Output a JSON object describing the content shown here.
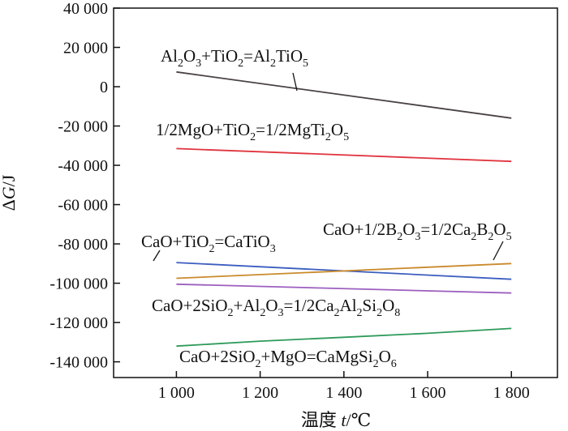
{
  "chart_data": {
    "type": "line",
    "xlabel": "温度 t/℃",
    "xlabel_prefix": "温度 ",
    "xlabel_var": "t",
    "xlabel_unit": "/℃",
    "ylabel": "ΔG/J",
    "ylabel_prefix": "Δ",
    "ylabel_var": "G",
    "ylabel_unit": "/J",
    "xlim": [
      850,
      1910
    ],
    "ylim": [
      -148000,
      40000
    ],
    "x_ticks": [
      1000,
      1200,
      1400,
      1600,
      1800
    ],
    "x_tick_labels": [
      "1 000",
      "1 200",
      "1 400",
      "1 600",
      "1 800"
    ],
    "y_ticks": [
      40000,
      20000,
      0,
      -20000,
      -40000,
      -60000,
      -80000,
      -100000,
      -120000,
      -140000
    ],
    "y_tick_labels": [
      "40 000",
      "20 000",
      "0",
      "-20 000",
      "-40 000",
      "-60 000",
      "-80 000",
      "-100 000",
      "-120 000",
      "-140 000"
    ],
    "grid": false,
    "series": [
      {
        "name": "Al2O3+TiO2=Al2TiO5",
        "color": "#4a4242",
        "x": [
          1000,
          1800
        ],
        "y": [
          7500,
          -16000
        ],
        "label_parts": [
          [
            "Al",
            ""
          ],
          [
            "2",
            "sub"
          ],
          [
            "O",
            ""
          ],
          [
            "3",
            "sub"
          ],
          [
            "+TiO",
            ""
          ],
          [
            "2",
            "sub"
          ],
          [
            "=Al",
            ""
          ],
          [
            "2",
            "sub"
          ],
          [
            "TiO",
            ""
          ],
          [
            "5",
            "sub"
          ]
        ]
      },
      {
        "name": "1/2MgO+TiO2=1/2MgTi2O5",
        "color": "#e0343f",
        "x": [
          1000,
          1800
        ],
        "y": [
          -31500,
          -38000
        ],
        "label_parts": [
          [
            "1/2MgO+TiO",
            ""
          ],
          [
            "2",
            "sub"
          ],
          [
            "=1/2MgTi",
            ""
          ],
          [
            "2",
            "sub"
          ],
          [
            "O",
            ""
          ],
          [
            "5",
            "sub"
          ]
        ]
      },
      {
        "name": "CaO+TiO2=CaTiO3",
        "color": "#3b5dbf",
        "x": [
          1000,
          1800
        ],
        "y": [
          -89500,
          -98000
        ],
        "label_parts": [
          [
            "CaO+TiO",
            ""
          ],
          [
            "2",
            "sub"
          ],
          [
            "=CaTiO",
            ""
          ],
          [
            "3",
            "sub"
          ]
        ]
      },
      {
        "name": "CaO+1/2B2O3=1/2Ca2B2O5",
        "color": "#c98a2c",
        "x": [
          1000,
          1800
        ],
        "y": [
          -97500,
          -90000
        ],
        "label_parts": [
          [
            "CaO+1/2B",
            ""
          ],
          [
            "2",
            "sub"
          ],
          [
            "O",
            ""
          ],
          [
            "3",
            "sub"
          ],
          [
            "=1/2Ca",
            ""
          ],
          [
            "2",
            "sub"
          ],
          [
            "B",
            ""
          ],
          [
            "2",
            "sub"
          ],
          [
            "O",
            ""
          ],
          [
            "5",
            "sub"
          ]
        ]
      },
      {
        "name": "CaO+2SiO2+Al2O3=1/2Ca2Al2Si2O8",
        "color": "#9c5fbf",
        "x": [
          1000,
          1800
        ],
        "y": [
          -100500,
          -105000
        ],
        "label_parts": [
          [
            "CaO+2SiO",
            ""
          ],
          [
            "2",
            "sub"
          ],
          [
            "+Al",
            ""
          ],
          [
            "2",
            "sub"
          ],
          [
            "O",
            ""
          ],
          [
            "3",
            "sub"
          ],
          [
            "=1/2Ca",
            ""
          ],
          [
            "2",
            "sub"
          ],
          [
            "Al",
            ""
          ],
          [
            "2",
            "sub"
          ],
          [
            "Si",
            ""
          ],
          [
            "2",
            "sub"
          ],
          [
            "O",
            ""
          ],
          [
            "8",
            "sub"
          ]
        ]
      },
      {
        "name": "CaO+2SiO2+MgO=CaMgSi2O6",
        "color": "#2e9a5a",
        "x": [
          1000,
          1200,
          1400,
          1600,
          1800
        ],
        "y": [
          -132000,
          -129500,
          -127500,
          -125500,
          -123000
        ],
        "label_parts": [
          [
            "CaO+2SiO",
            ""
          ],
          [
            "2",
            "sub"
          ],
          [
            "+MgO=CaMgSi",
            ""
          ],
          [
            "2",
            "sub"
          ],
          [
            "O",
            ""
          ],
          [
            "6",
            "sub"
          ]
        ]
      }
    ]
  }
}
